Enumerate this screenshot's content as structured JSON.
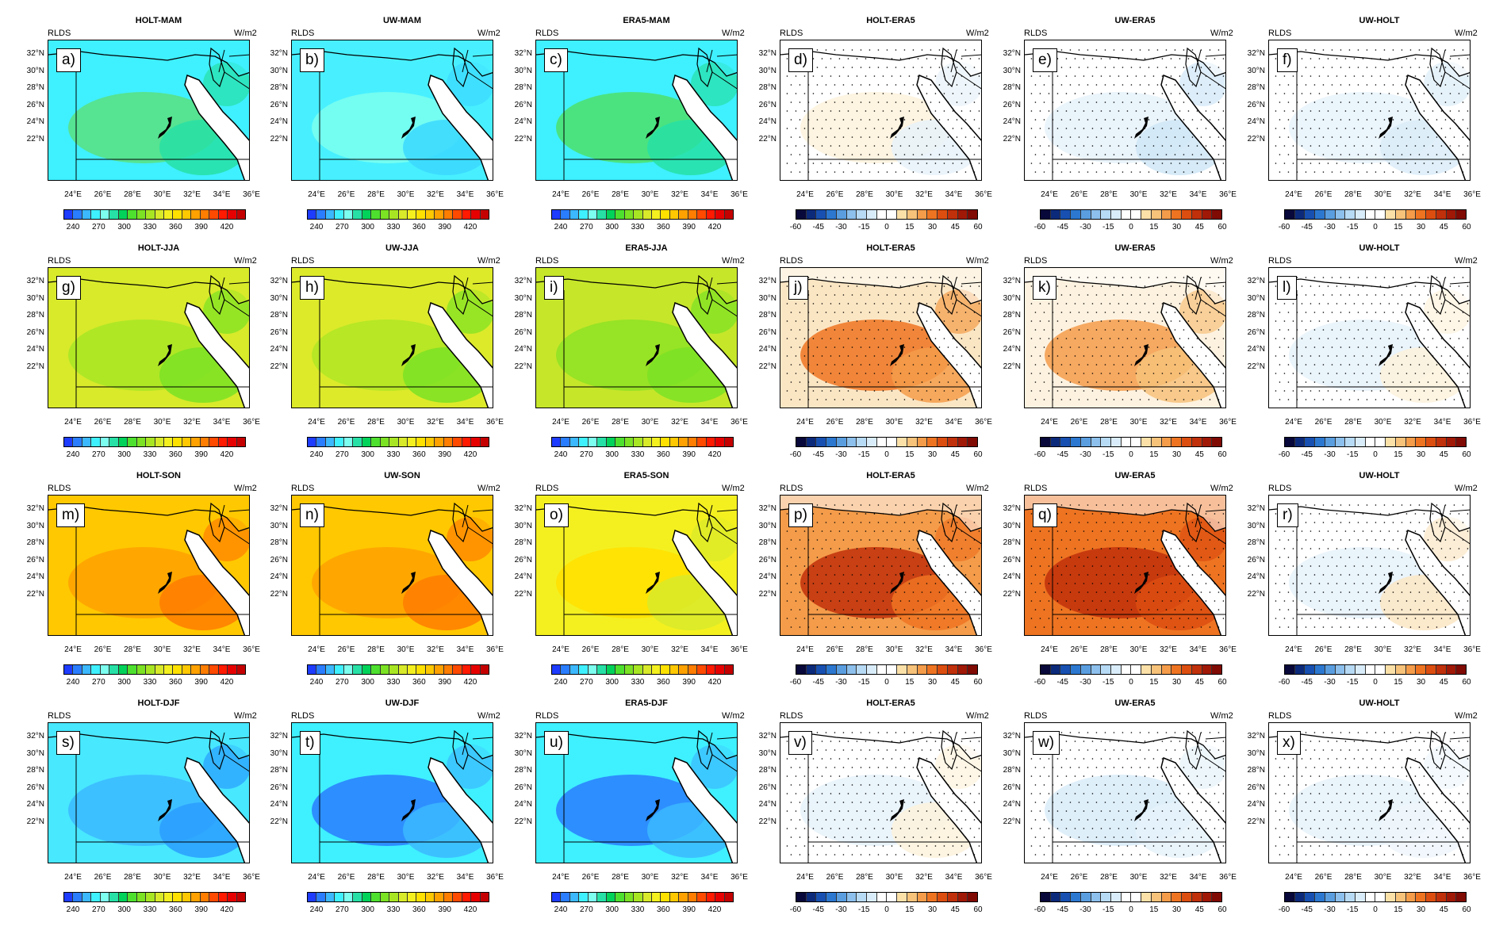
{
  "variable": "RLDS",
  "units": "W/m2",
  "y_ticks": [
    "32°N",
    "30°N",
    "28°N",
    "26°N",
    "24°N",
    "22°N"
  ],
  "x_ticks": [
    "24°E",
    "26°E",
    "28°E",
    "30°E",
    "32°E",
    "34°E",
    "36°E"
  ],
  "abs_scale": {
    "labels": [
      "240",
      "270",
      "300",
      "330",
      "360",
      "390",
      "420"
    ],
    "colors": [
      "#1e3cff",
      "#2a7dff",
      "#3cb8ff",
      "#3ff0ff",
      "#7dffef",
      "#27e0a5",
      "#00d25a",
      "#4ee02e",
      "#7be224",
      "#a8e624",
      "#d8ea2a",
      "#f4f020",
      "#ffe100",
      "#ffc800",
      "#ffa100",
      "#ff7d00",
      "#ff4a00",
      "#ff1a00",
      "#e60000",
      "#c40000"
    ]
  },
  "diff_scale": {
    "labels": [
      "-60",
      "-45",
      "-30",
      "-15",
      "0",
      "15",
      "30",
      "45",
      "60"
    ],
    "colors": [
      "#08083a",
      "#0c2a7a",
      "#1750b0",
      "#2c78d0",
      "#5a9ee0",
      "#8dc0ec",
      "#b7daf5",
      "#d9ecf9",
      "#ffffff",
      "#ffffff",
      "#fbe0a8",
      "#f7c27a",
      "#f49c4a",
      "#ee7422",
      "#dc4e10",
      "#c0300a",
      "#a01806",
      "#800a04"
    ]
  },
  "panels": [
    {
      "label": "a)",
      "title": "HOLT-MAM",
      "kind": "abs",
      "base": "#3ff0ff",
      "blob": "#5ae07f",
      "blob2": "#27e0a5"
    },
    {
      "label": "b)",
      "title": "UW-MAM",
      "kind": "abs",
      "base": "#48f0ff",
      "blob": "#7dffef",
      "blob2": "#3cd8ff"
    },
    {
      "label": "c)",
      "title": "ERA5-MAM",
      "kind": "abs",
      "base": "#3ff0ff",
      "blob": "#4ee06a",
      "blob2": "#27e0a5"
    },
    {
      "label": "d)",
      "title": "HOLT-ERA5",
      "kind": "diff",
      "base": "#ffffff",
      "blob": "#fdf2dc",
      "blob2": "#e8f2fa"
    },
    {
      "label": "e)",
      "title": "UW-ERA5",
      "kind": "diff",
      "base": "#ffffff",
      "blob": "#e6f2fa",
      "blob2": "#cfe6f6"
    },
    {
      "label": "f)",
      "title": "UW-HOLT",
      "kind": "diff",
      "base": "#ffffff",
      "blob": "#e8f3fb",
      "blob2": "#dbecf8"
    },
    {
      "label": "g)",
      "title": "HOLT-JJA",
      "kind": "abs",
      "base": "#d8ea2a",
      "blob": "#a8e624",
      "blob2": "#7be224"
    },
    {
      "label": "h)",
      "title": "UW-JJA",
      "kind": "abs",
      "base": "#dcea2a",
      "blob": "#b0e624",
      "blob2": "#7be224"
    },
    {
      "label": "i)",
      "title": "ERA5-JJA",
      "kind": "abs",
      "base": "#c6e62a",
      "blob": "#8ee224",
      "blob2": "#7be224"
    },
    {
      "label": "j)",
      "title": "HOLT-ERA5",
      "kind": "diff",
      "base": "#fbe6c4",
      "blob": "#ee7422",
      "blob2": "#f49c4a"
    },
    {
      "label": "k)",
      "title": "UW-ERA5",
      "kind": "diff",
      "base": "#fdf2e0",
      "blob": "#f49c4a",
      "blob2": "#f7c27a"
    },
    {
      "label": "l)",
      "title": "UW-HOLT",
      "kind": "diff",
      "base": "#ffffff",
      "blob": "#e6f2fa",
      "blob2": "#fdf2dc"
    },
    {
      "label": "m)",
      "title": "HOLT-SON",
      "kind": "abs",
      "base": "#ffc800",
      "blob": "#ffa100",
      "blob2": "#ff7d00"
    },
    {
      "label": "n)",
      "title": "UW-SON",
      "kind": "abs",
      "base": "#ffc800",
      "blob": "#ffa100",
      "blob2": "#ff7d00"
    },
    {
      "label": "o)",
      "title": "ERA5-SON",
      "kind": "abs",
      "base": "#f4f020",
      "blob": "#ffe100",
      "blob2": "#d8ea2a"
    },
    {
      "label": "p)",
      "title": "HOLT-ERA5",
      "kind": "diff",
      "base": "#f49c4a",
      "blob": "#c0300a",
      "blob2": "#ee7422"
    },
    {
      "label": "q)",
      "title": "UW-ERA5",
      "kind": "diff",
      "base": "#ee7422",
      "blob": "#c0300a",
      "blob2": "#dc4e10"
    },
    {
      "label": "r)",
      "title": "UW-HOLT",
      "kind": "diff",
      "base": "#ffffff",
      "blob": "#e6f2fa",
      "blob2": "#fbe6c4"
    },
    {
      "label": "s)",
      "title": "HOLT-DJF",
      "kind": "abs",
      "base": "#48e8ff",
      "blob": "#3cb8ff",
      "blob2": "#2a9dff"
    },
    {
      "label": "t)",
      "title": "UW-DJF",
      "kind": "abs",
      "base": "#3ff0ff",
      "blob": "#2a7dff",
      "blob2": "#3cb8ff"
    },
    {
      "label": "u)",
      "title": "ERA5-DJF",
      "kind": "abs",
      "base": "#3ff0ff",
      "blob": "#2a7dff",
      "blob2": "#3cb8ff"
    },
    {
      "label": "v)",
      "title": "HOLT-ERA5",
      "kind": "diff",
      "base": "#ffffff",
      "blob": "#e6f2fa",
      "blob2": "#fdf2dc"
    },
    {
      "label": "w)",
      "title": "UW-ERA5",
      "kind": "diff",
      "base": "#ffffff",
      "blob": "#d9ecf9",
      "blob2": "#e6f2fa"
    },
    {
      "label": "x)",
      "title": "UW-HOLT",
      "kind": "diff",
      "base": "#ffffff",
      "blob": "#e6f2fa",
      "blob2": "#eef6fb"
    }
  ]
}
